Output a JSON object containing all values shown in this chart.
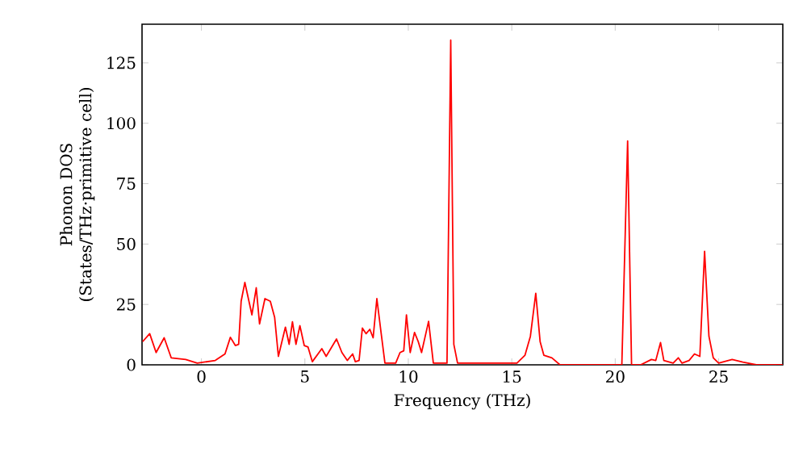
{
  "chart_data": {
    "type": "line",
    "xlabel": "Frequency (THz)",
    "ylabel": "Phonon DOS (States/THz·primitive cell)",
    "xlim": [
      -2.87,
      28.1
    ],
    "ylim": [
      0,
      141
    ],
    "xticks": [
      0,
      5,
      10,
      15,
      20,
      25
    ],
    "yticks": [
      0,
      25,
      50,
      75,
      100,
      125
    ],
    "grid": false,
    "marker": "none",
    "line_style": "solid",
    "series": [
      {
        "color": "#ff0000",
        "x": [
          -2.84,
          -2.5,
          -2.19,
          -1.8,
          -1.46,
          -0.76,
          -0.2,
          0.67,
          1.14,
          1.4,
          1.64,
          1.8,
          1.92,
          2.1,
          2.44,
          2.65,
          2.81,
          3.07,
          3.33,
          3.54,
          3.72,
          4.06,
          4.24,
          4.4,
          4.57,
          4.76,
          4.97,
          5.15,
          5.36,
          5.82,
          6.03,
          6.53,
          6.79,
          7.05,
          7.31,
          7.44,
          7.62,
          7.78,
          7.96,
          8.14,
          8.3,
          8.48,
          8.69,
          8.87,
          9.39,
          9.6,
          9.78,
          9.91,
          10.09,
          10.3,
          10.48,
          10.64,
          10.98,
          11.21,
          11.87,
          12.05,
          12.2,
          12.38,
          15.25,
          15.64,
          15.9,
          16.16,
          16.37,
          16.55,
          16.94,
          17.33,
          20.32,
          20.6,
          20.79,
          21.23,
          21.75,
          21.96,
          22.19,
          22.35,
          22.8,
          23.05,
          23.23,
          23.57,
          23.83,
          24.09,
          24.32,
          24.53,
          24.74,
          25.0,
          25.65,
          26.17,
          26.82,
          28.1
        ],
        "values": [
          9.6,
          12.9,
          5.1,
          11.2,
          2.9,
          2.2,
          0.7,
          1.8,
          4.5,
          11.4,
          8,
          8.5,
          26.3,
          34.1,
          20.7,
          31.9,
          16.9,
          27.4,
          26.3,
          19.6,
          3.5,
          15.6,
          8.5,
          17.8,
          8.5,
          16.2,
          8,
          7.4,
          1.3,
          6.7,
          3.5,
          10.7,
          5.1,
          1.8,
          4.5,
          1.3,
          1.8,
          15.2,
          12.9,
          14.7,
          11.2,
          27.4,
          12.9,
          0.7,
          0.7,
          5.1,
          5.8,
          20.7,
          5.1,
          13.4,
          9.6,
          5.1,
          18,
          0.7,
          0.7,
          134.4,
          8.5,
          0.7,
          0.7,
          4,
          11.8,
          29.6,
          9.6,
          4,
          2.9,
          0,
          0,
          92.7,
          0,
          0,
          2.2,
          1.8,
          9.2,
          1.8,
          0.7,
          2.9,
          0.7,
          1.8,
          4.5,
          3.5,
          47,
          11.8,
          2.9,
          0.7,
          2.2,
          1.1,
          0,
          0
        ]
      }
    ]
  }
}
